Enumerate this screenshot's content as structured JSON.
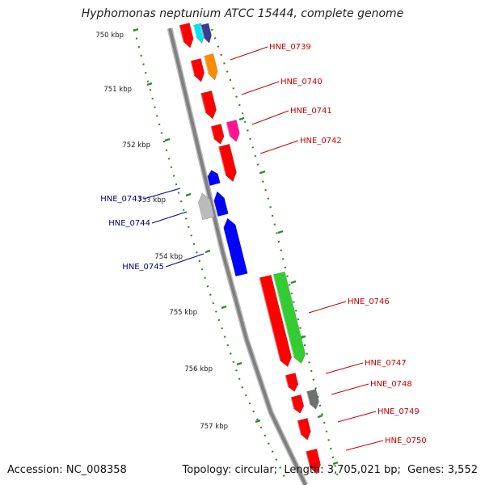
{
  "title": "Hyphomonas neptunium ATCC 15444, complete genome",
  "footer": {
    "accession_label": "Accession:",
    "accession": "NC_008358",
    "topology_label": "Topology:",
    "topology": "circular",
    "length_label": "Length:",
    "length": "3,705,021 bp",
    "genes_label": "Genes:",
    "genes": "3,552"
  },
  "ticks": [
    "750 kbp",
    "751 kbp",
    "752 kbp",
    "753 kbp",
    "754 kbp",
    "755 kbp",
    "756 kbp",
    "757 kbp"
  ],
  "colors": {
    "backbone": "#808080",
    "tick": "#2e8b2e",
    "forward_label": "#cc0000",
    "reverse_label": "#00008b",
    "cds_red": "#ff0000",
    "cds_blue": "#0000ff",
    "cds_green": "#33cc33",
    "cds_orange": "#ff8c00",
    "cds_magenta": "#ff1493",
    "cds_grey": "#707070",
    "cds_lightgrey": "#bbbbbb",
    "cds_cyan": "#00e5ee",
    "cds_navy": "#3b3b8f"
  },
  "forward_labels": [
    "HNE_0739",
    "HNE_0740",
    "HNE_0741",
    "HNE_0742",
    "HNE_0746",
    "HNE_0747",
    "HNE_0748",
    "HNE_0749",
    "HNE_0750"
  ],
  "reverse_labels": [
    "HNE_0743",
    "HNE_0744",
    "HNE_0745"
  ]
}
